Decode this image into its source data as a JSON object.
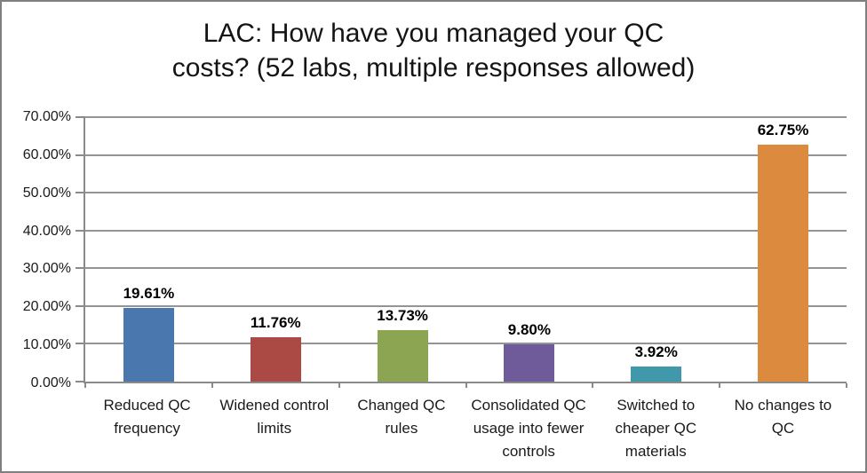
{
  "frame": {
    "background": "#ffffff",
    "border_color": "#7f7f7f"
  },
  "title": {
    "line1": "LAC: How have you managed your QC",
    "line2": "costs? (52 labs, multiple responses allowed)"
  },
  "chart_data": {
    "type": "bar",
    "title": "LAC: How have you managed your QC costs? (52 labs, multiple responses allowed)",
    "categories": [
      "Reduced QC frequency",
      "Widened control limits",
      "Changed QC rules",
      "Consolidated QC usage into fewer controls",
      "Switched to cheaper QC materials",
      "No changes to QC"
    ],
    "values": [
      19.61,
      11.76,
      13.73,
      9.8,
      3.92,
      62.75
    ],
    "value_labels": [
      "19.61%",
      "11.76%",
      "13.73%",
      "9.80%",
      "3.92%",
      "62.75%"
    ],
    "bar_colors": [
      "#4A77AE",
      "#AB4A45",
      "#8CA553",
      "#6F5A9A",
      "#3F99AB",
      "#DB8A3E"
    ],
    "xlabel": "",
    "ylabel": "",
    "ylim": [
      0,
      70
    ],
    "y_tick_labels": [
      "70.00%",
      "60.00%",
      "50.00%",
      "40.00%",
      "30.00%",
      "20.00%",
      "10.00%",
      "0.00%"
    ],
    "grid": true,
    "legend": false,
    "gridline_color": "#949494",
    "axis_color": "#8a8a8a"
  }
}
